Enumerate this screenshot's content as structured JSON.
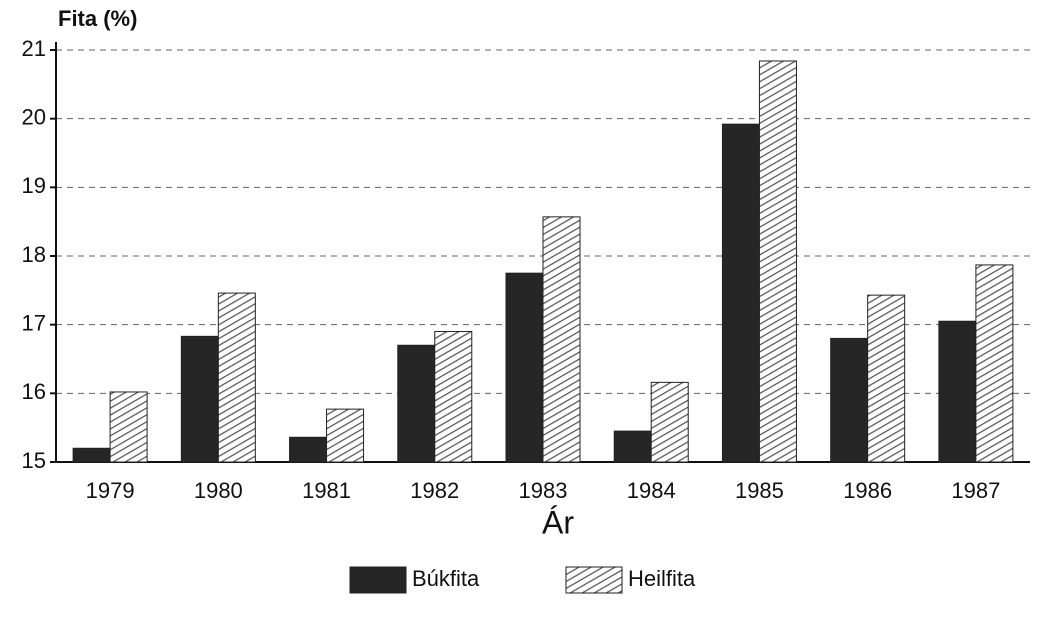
{
  "chart_data": {
    "type": "bar",
    "y_label": "Fita (%)",
    "x_label": "Ár",
    "categories": [
      "1979",
      "1980",
      "1981",
      "1982",
      "1983",
      "1984",
      "1985",
      "1986",
      "1987"
    ],
    "series": [
      {
        "name": "Búkfita",
        "color": "#262626",
        "values": [
          15.2,
          16.83,
          15.36,
          16.7,
          17.75,
          15.45,
          19.92,
          16.8,
          17.05
        ]
      },
      {
        "name": "Heilfita",
        "color": "#555555",
        "pattern": "hatch",
        "values": [
          16.02,
          17.46,
          15.77,
          16.9,
          18.57,
          16.16,
          20.84,
          17.43,
          17.87
        ]
      }
    ],
    "ylim": [
      15,
      21
    ],
    "yticks": [
      15,
      16,
      17,
      18,
      19,
      20,
      21
    ],
    "grid": true,
    "legend": "bottom"
  }
}
